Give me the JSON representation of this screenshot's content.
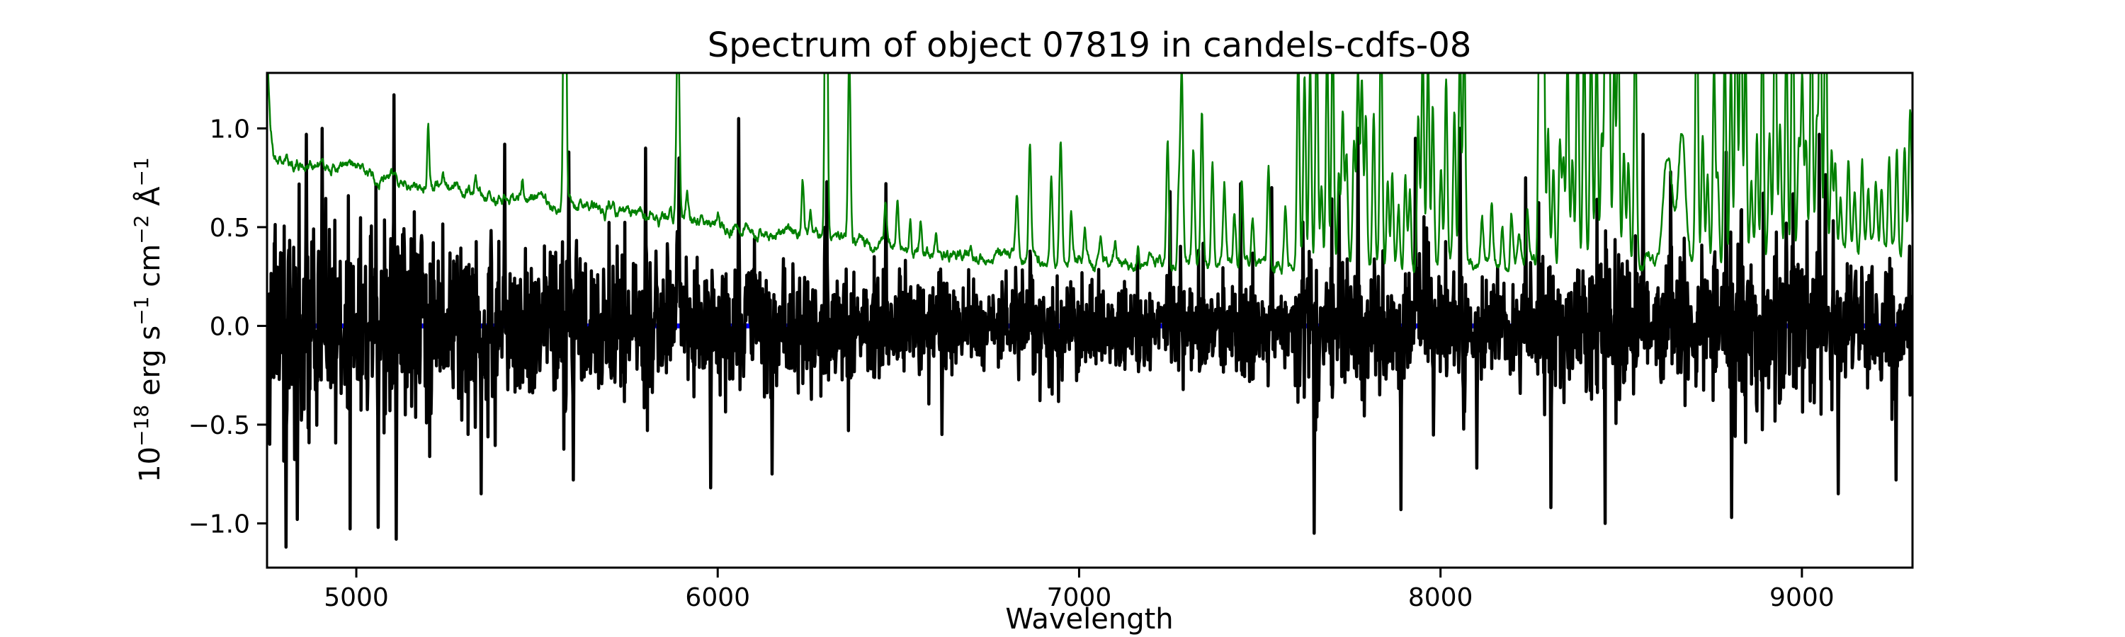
{
  "figure": {
    "background": "#ffffff"
  },
  "chart_data": {
    "type": "line",
    "title": "Spectrum of object 07819 in candels-cdfs-08",
    "xlabel": "Wavelength",
    "ylabel": "10⁻¹⁸ erg s⁻¹ cm⁻² Å⁻¹",
    "ylabel_parts": [
      {
        "t": "10",
        "sup": false
      },
      {
        "t": "−18",
        "sup": true
      },
      {
        "t": " erg s",
        "sup": false
      },
      {
        "t": "−1",
        "sup": true
      },
      {
        "t": " cm",
        "sup": false
      },
      {
        "t": "−2",
        "sup": true
      },
      {
        "t": " Å",
        "sup": false
      },
      {
        "t": "−1",
        "sup": true
      }
    ],
    "xlim": [
      4753,
      9306
    ],
    "ylim": [
      -1.224,
      1.281
    ],
    "x_ticks": [
      5000,
      6000,
      7000,
      8000,
      9000
    ],
    "x_tick_labels": [
      "5000",
      "6000",
      "7000",
      "8000",
      "9000"
    ],
    "y_ticks": [
      1.0,
      0.5,
      0.0,
      -0.5,
      -1.0
    ],
    "y_tick_labels": [
      "1.0",
      "0.5",
      "0.0",
      "−0.5",
      "−1.0"
    ],
    "grid": false,
    "legend": null,
    "frame_color": "#000000",
    "series": [
      {
        "name": "zero-level",
        "type": "hline",
        "y": 0.0,
        "color": "#0000ff",
        "line_width": 7
      },
      {
        "name": "flux",
        "type": "noisy-spectrum",
        "color": "#000000",
        "line_width": 4.5,
        "sample_step": 1.25,
        "seed": 7,
        "sigma_continuum_factor": 0.33,
        "sigma_skyline_factor": 0.15,
        "sigma_skyline_cap": 1.4,
        "spikes": [
          [
            4806,
            -1.12
          ],
          [
            4837,
            -0.98
          ],
          [
            4862,
            0.97
          ],
          [
            4905,
            1.0
          ],
          [
            5060,
            -1.02
          ],
          [
            5104,
            1.17
          ],
          [
            5110,
            -1.08
          ],
          [
            5345,
            -0.85
          ],
          [
            5410,
            0.92
          ],
          [
            5588,
            0.88
          ],
          [
            5600,
            -0.78
          ],
          [
            5800,
            0.9
          ],
          [
            5893,
            0.85
          ],
          [
            5980,
            -0.82
          ],
          [
            6058,
            1.05
          ],
          [
            6150,
            -0.75
          ],
          [
            6302,
            0.73
          ],
          [
            6466,
            0.72
          ],
          [
            6620,
            -0.55
          ],
          [
            7252,
            0.68
          ],
          [
            7447,
            0.72
          ],
          [
            7533,
            0.7
          ],
          [
            7650,
            -1.05
          ],
          [
            7719,
            0.68
          ],
          [
            7772,
            1.0
          ],
          [
            7890,
            -0.93
          ],
          [
            7930,
            0.95
          ],
          [
            8054,
            1.0
          ],
          [
            8100,
            -0.72
          ],
          [
            8236,
            0.75
          ],
          [
            8306,
            -0.92
          ],
          [
            8455,
            -1.0
          ],
          [
            8560,
            0.97
          ],
          [
            8637,
            0.78
          ],
          [
            8790,
            0.88
          ],
          [
            8806,
            -0.97
          ],
          [
            9048,
            0.97
          ],
          [
            9100,
            -0.85
          ],
          [
            9260,
            -0.78
          ]
        ]
      },
      {
        "name": "noise-sky",
        "type": "sky-spectrum",
        "color": "#008000",
        "line_width": 2.5,
        "sample_step": 1.25,
        "jitter_seed": 21,
        "jitter_amp": 0.018,
        "continuum": [
          [
            4753,
            1.45
          ],
          [
            4762,
            1.0
          ],
          [
            4772,
            0.86
          ],
          [
            4800,
            0.83
          ],
          [
            4900,
            0.81
          ],
          [
            5000,
            0.79
          ],
          [
            5100,
            0.75
          ],
          [
            5200,
            0.71
          ],
          [
            5300,
            0.69
          ],
          [
            5350,
            0.66
          ],
          [
            5450,
            0.645
          ],
          [
            5550,
            0.62
          ],
          [
            5650,
            0.6
          ],
          [
            5750,
            0.565
          ],
          [
            5850,
            0.54
          ],
          [
            5950,
            0.52
          ],
          [
            6050,
            0.48
          ],
          [
            6150,
            0.47
          ],
          [
            6250,
            0.46
          ],
          [
            6350,
            0.44
          ],
          [
            6450,
            0.41
          ],
          [
            6550,
            0.385
          ],
          [
            6650,
            0.36
          ],
          [
            6750,
            0.345
          ],
          [
            6850,
            0.34
          ],
          [
            6950,
            0.335
          ],
          [
            7050,
            0.325
          ],
          [
            7150,
            0.32
          ],
          [
            7250,
            0.315
          ],
          [
            7350,
            0.31
          ],
          [
            7450,
            0.305
          ],
          [
            7550,
            0.3
          ],
          [
            7700,
            0.295
          ],
          [
            7850,
            0.295
          ],
          [
            8000,
            0.3
          ],
          [
            8150,
            0.305
          ],
          [
            8300,
            0.31
          ],
          [
            8450,
            0.315
          ],
          [
            8600,
            0.32
          ],
          [
            8750,
            0.33
          ],
          [
            8900,
            0.345
          ],
          [
            9000,
            0.36
          ],
          [
            9100,
            0.37
          ],
          [
            9200,
            0.385
          ],
          [
            9306,
            0.4
          ]
        ],
        "sky_lines": [
          [
            5199,
            0.3,
            3
          ],
          [
            5240,
            0.07,
            3
          ],
          [
            5330,
            0.06,
            3
          ],
          [
            5460,
            0.1,
            3
          ],
          [
            5577,
            2.2,
            3.5
          ],
          [
            5620,
            0.05,
            3
          ],
          [
            5700,
            0.05,
            3
          ],
          [
            5869,
            0.07,
            3
          ],
          [
            5890,
            1.05,
            4
          ],
          [
            5915,
            0.12,
            3
          ],
          [
            6000,
            0.05,
            3
          ],
          [
            6235,
            0.26,
            3
          ],
          [
            6257,
            0.12,
            3
          ],
          [
            6300,
            2.2,
            3.5
          ],
          [
            6364,
            0.95,
            3.5
          ],
          [
            6464,
            0.18,
            3
          ],
          [
            6498,
            0.24,
            3
          ],
          [
            6533,
            0.16,
            3
          ],
          [
            6562,
            0.13,
            3
          ],
          [
            6604,
            0.1,
            3
          ],
          [
            6700,
            0.07,
            3
          ],
          [
            6828,
            0.32,
            4
          ],
          [
            6864,
            0.62,
            3.5
          ],
          [
            6923,
            0.44,
            3.5
          ],
          [
            6949,
            0.58,
            3.5
          ],
          [
            6978,
            0.26,
            3
          ],
          [
            7016,
            0.14,
            3
          ],
          [
            7060,
            0.12,
            3
          ],
          [
            7100,
            0.1,
            3
          ],
          [
            7164,
            0.1,
            3
          ],
          [
            7245,
            0.65,
            3.5
          ],
          [
            7276,
            0.38,
            3.5
          ],
          [
            7284,
            0.95,
            3.5
          ],
          [
            7316,
            0.58,
            3.5
          ],
          [
            7340,
            0.78,
            3.5
          ],
          [
            7369,
            0.52,
            3.5
          ],
          [
            7402,
            0.4,
            3.5
          ],
          [
            7430,
            0.25,
            3.5
          ],
          [
            7450,
            0.42,
            3.5
          ],
          [
            7480,
            0.24,
            3.5
          ],
          [
            7524,
            0.5,
            3.5
          ],
          [
            7571,
            0.32,
            3.5
          ],
          [
            8630,
            0.55,
            13
          ],
          [
            8668,
            0.62,
            10
          ],
          [
            9300,
            0.3,
            4
          ]
        ],
        "forest_bands": [
          {
            "range": [
              7604,
              8080
            ],
            "spacing": 17,
            "amp": [
              0.35,
              1.35
            ],
            "sigma": 3.5,
            "seed": 101
          },
          {
            "range": [
              8100,
              8262
            ],
            "spacing": 22,
            "amp": [
              0.1,
              0.3
            ],
            "sigma": 3.5,
            "seed": 102
          },
          {
            "range": [
              8270,
              8545
            ],
            "spacing": 15,
            "amp": [
              0.45,
              1.65
            ],
            "sigma": 3.5,
            "seed": 103
          },
          {
            "range": [
              8695,
              9100
            ],
            "spacing": 14,
            "amp": [
              0.4,
              1.6
            ],
            "sigma": 3.5,
            "seed": 104
          },
          {
            "range": [
              9105,
              9306
            ],
            "spacing": 16,
            "amp": [
              0.18,
              0.5
            ],
            "sigma": 3.5,
            "seed": 105
          }
        ]
      }
    ]
  }
}
